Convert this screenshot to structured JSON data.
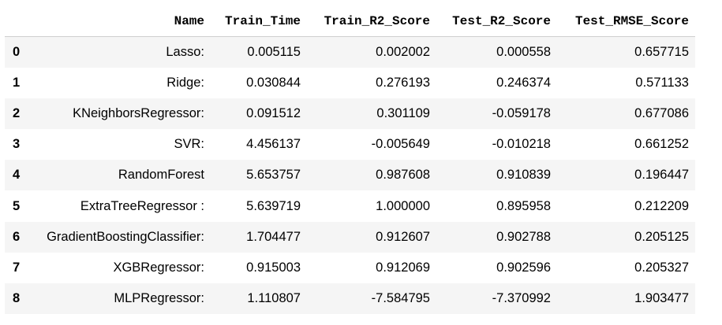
{
  "table": {
    "index_header": "",
    "columns": [
      "Name",
      "Train_Time",
      "Train_R2_Score",
      "Test_R2_Score",
      "Test_RMSE_Score"
    ],
    "rows": [
      {
        "index": "0",
        "cells": [
          "Lasso:",
          "0.005115",
          "0.002002",
          "0.000558",
          "0.657715"
        ]
      },
      {
        "index": "1",
        "cells": [
          "Ridge:",
          "0.030844",
          "0.276193",
          "0.246374",
          "0.571133"
        ]
      },
      {
        "index": "2",
        "cells": [
          "KNeighborsRegressor:",
          "0.091512",
          "0.301109",
          "-0.059178",
          "0.677086"
        ]
      },
      {
        "index": "3",
        "cells": [
          "SVR:",
          "4.456137",
          "-0.005649",
          "-0.010218",
          "0.661252"
        ]
      },
      {
        "index": "4",
        "cells": [
          "RandomForest",
          "5.653757",
          "0.987608",
          "0.910839",
          "0.196447"
        ]
      },
      {
        "index": "5",
        "cells": [
          "ExtraTreeRegressor :",
          "5.639719",
          "1.000000",
          "0.895958",
          "0.212209"
        ]
      },
      {
        "index": "6",
        "cells": [
          "GradientBoostingClassifier:",
          "1.704477",
          "0.912607",
          "0.902788",
          "0.205125"
        ]
      },
      {
        "index": "7",
        "cells": [
          "XGBRegressor:",
          "0.915003",
          "0.912069",
          "0.902596",
          "0.205327"
        ]
      },
      {
        "index": "8",
        "cells": [
          "MLPRegressor:",
          "1.110807",
          "-7.584795",
          "-7.370992",
          "1.903477"
        ]
      }
    ]
  }
}
